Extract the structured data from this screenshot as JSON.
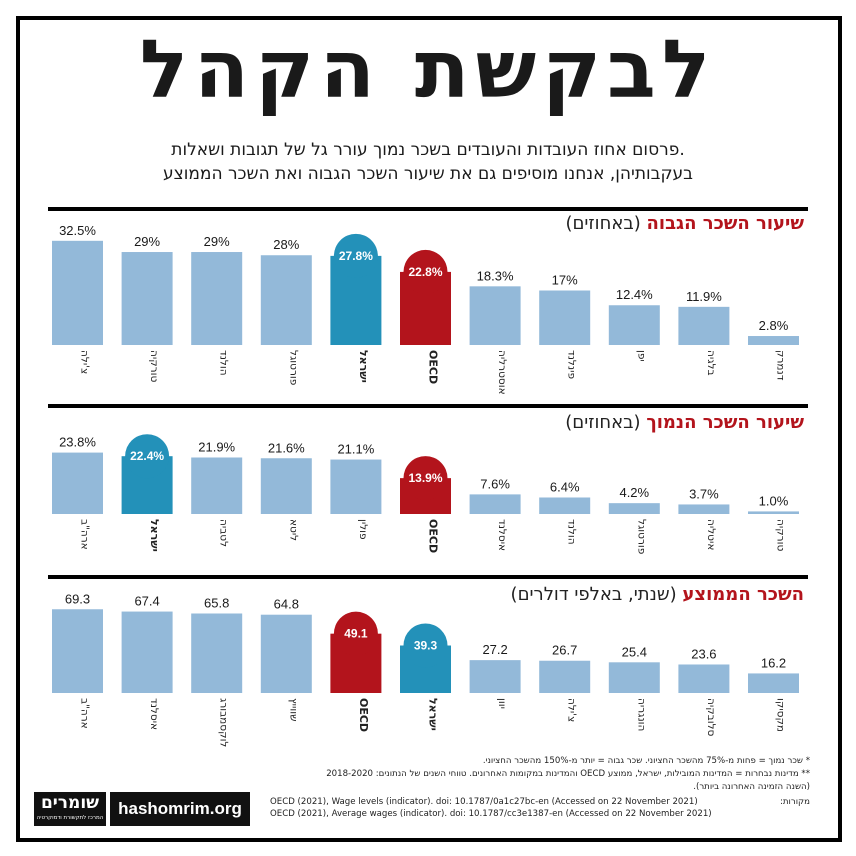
{
  "title": "לבקשת הקהל",
  "subtitle_line1": "פרסום אחוז העובדות והעובדים בשכר נמוך עורר גל של תגובות ושאלות.",
  "subtitle_line2": "בעקבותיהן, אנחנו מוסיפים גם את שיעור השכר הגבוה ואת השכר הממוצע",
  "colors": {
    "bar": "#93b9d9",
    "israel": "#2391b9",
    "oecd": "#b3141c"
  },
  "chart_data": [
    {
      "type": "bar",
      "title": "שיעור השכר הגבוה",
      "unit": "(באחוזים)",
      "categories": [
        "צ'ילה",
        "טורקיה",
        "הולנד",
        "פורטוגל",
        "ישראל",
        "OECD",
        "אוסטרליה",
        "פינלנד",
        "יפן",
        "בלגיה",
        "דנמרק"
      ],
      "values": [
        32.5,
        29,
        29,
        28,
        27.8,
        22.8,
        18.3,
        17,
        12.4,
        11.9,
        2.8
      ],
      "labels": [
        "32.5%",
        "29%",
        "29%",
        "28%",
        "27.8%",
        "22.8%",
        "18.3%",
        "17%",
        "12.4%",
        "11.9%",
        "2.8%"
      ],
      "highlight": {
        "ישראל": "israel",
        "OECD": "oecd"
      },
      "ylim": [
        0,
        34
      ]
    },
    {
      "type": "bar",
      "title": "שיעור השכר הנמוך",
      "unit": "(באחוזים)",
      "categories": [
        "ארה\"ב",
        "ישראל",
        "לטביה",
        "ליטא",
        "פולין",
        "OECD",
        "איסלנד",
        "הולנד",
        "פורטוגל",
        "איטליה",
        "טורקיה"
      ],
      "values": [
        23.8,
        22.4,
        21.9,
        21.6,
        21.1,
        13.9,
        7.6,
        6.4,
        4.2,
        3.7,
        1.0
      ],
      "labels": [
        "23.8%",
        "22.4%",
        "21.9%",
        "21.6%",
        "21.1%",
        "13.9%",
        "7.6%",
        "6.4%",
        "4.2%",
        "3.7%",
        "1.0%"
      ],
      "highlight": {
        "ישראל": "israel",
        "OECD": "oecd"
      },
      "ylim": [
        0,
        24.8
      ]
    },
    {
      "type": "bar",
      "title": "השכר הממוצע",
      "unit": "(שנתי, באלפי דולרים)",
      "categories": [
        "ארה\"ב",
        "איסלנד",
        "לוקסמבורג",
        "שווייץ",
        "OECD",
        "ישראל",
        "יוון",
        "צ'ילה",
        "הונגריה",
        "סלובקיה",
        "מקסיקו"
      ],
      "values": [
        69.3,
        67.4,
        65.8,
        64.8,
        49.1,
        39.3,
        27.2,
        26.7,
        25.4,
        23.6,
        16.2
      ],
      "labels": [
        "69.3",
        "67.4",
        "65.8",
        "64.8",
        "49.1",
        "39.3",
        "27.2",
        "26.7",
        "25.4",
        "23.6",
        "16.2"
      ],
      "highlight": {
        "ישראל": "israel",
        "OECD": "oecd"
      },
      "ylim": [
        0,
        72
      ]
    }
  ],
  "footnotes": [
    "* שכר נמוך = פחות מ-75% מהשכר החציוני. שכר גבוה = יותר מ-150% מהשכר החציוני.",
    "** מדינות נבחרות = המדינות המובילות, ישראל, ממוצע OECD והמדינות במקומות האחרונים. טווחי השנים של הנתונים: 2018-2020",
    "(השנה הזמינה האחרונה ביותר)."
  ],
  "sources": {
    "label": "מקורות:",
    "lines": [
      "OECD (2021), Wage levels (indicator). doi: 10.1787/0a1c27bc-en (Accessed on 22 November 2021)",
      "OECD (2021), Average wages (indicator). doi: 10.1787/cc3e1387-en (Accessed on 22 November 2021)"
    ]
  },
  "logo": {
    "name": "שומרים",
    "tagline": "המרכז לתקשורת ודמוקרטיה"
  },
  "site": "hashomrim.org"
}
